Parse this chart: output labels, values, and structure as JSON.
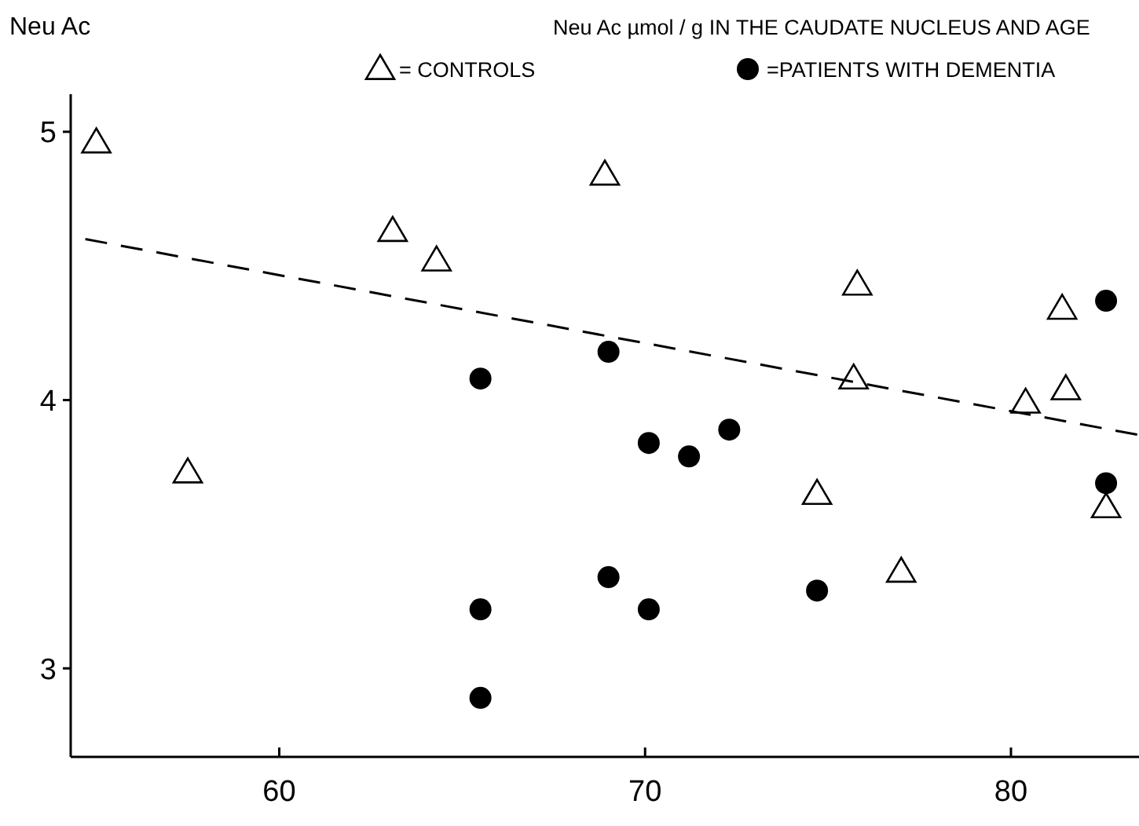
{
  "chart_data": {
    "type": "scatter",
    "title": "Neu Ac  µmol / g  IN THE CAUDATE NUCLEUS AND AGE",
    "ylabel": "Neu Ac",
    "legend": "top right",
    "grid": false,
    "xlim": [
      54.3,
      83.5
    ],
    "ylim": [
      2.67,
      5.14
    ],
    "xticks": [
      60,
      70,
      80
    ],
    "yticks": [
      3,
      4,
      5
    ],
    "series": [
      {
        "name": "= CONTROLS",
        "color": "#000000",
        "marker": "triangle",
        "x": [
          55.0,
          57.5,
          63.1,
          64.3,
          68.9,
          75.8,
          75.7,
          74.7,
          77.0,
          80.4,
          81.4,
          81.5,
          82.6
        ],
        "values": [
          4.96,
          3.73,
          4.63,
          4.52,
          4.84,
          4.43,
          4.08,
          3.65,
          3.36,
          3.99,
          4.34,
          4.04,
          3.6
        ]
      },
      {
        "name": "=PATIENTS WITH DEMENTIA",
        "color": "#000000",
        "marker": "circle",
        "x": [
          65.5,
          65.5,
          65.5,
          69.0,
          70.1,
          71.2,
          72.3,
          69.0,
          70.1,
          74.7,
          82.6,
          82.6
        ],
        "values": [
          4.08,
          3.22,
          2.89,
          4.18,
          3.84,
          3.79,
          3.89,
          3.34,
          3.22,
          3.29,
          4.37,
          3.69
        ]
      },
      {
        "type": "line",
        "color": "#000000",
        "marker": "none",
        "line_style": "dashed",
        "x": [
          54.7,
          83.5
        ],
        "values": [
          4.6,
          3.87
        ]
      }
    ]
  }
}
